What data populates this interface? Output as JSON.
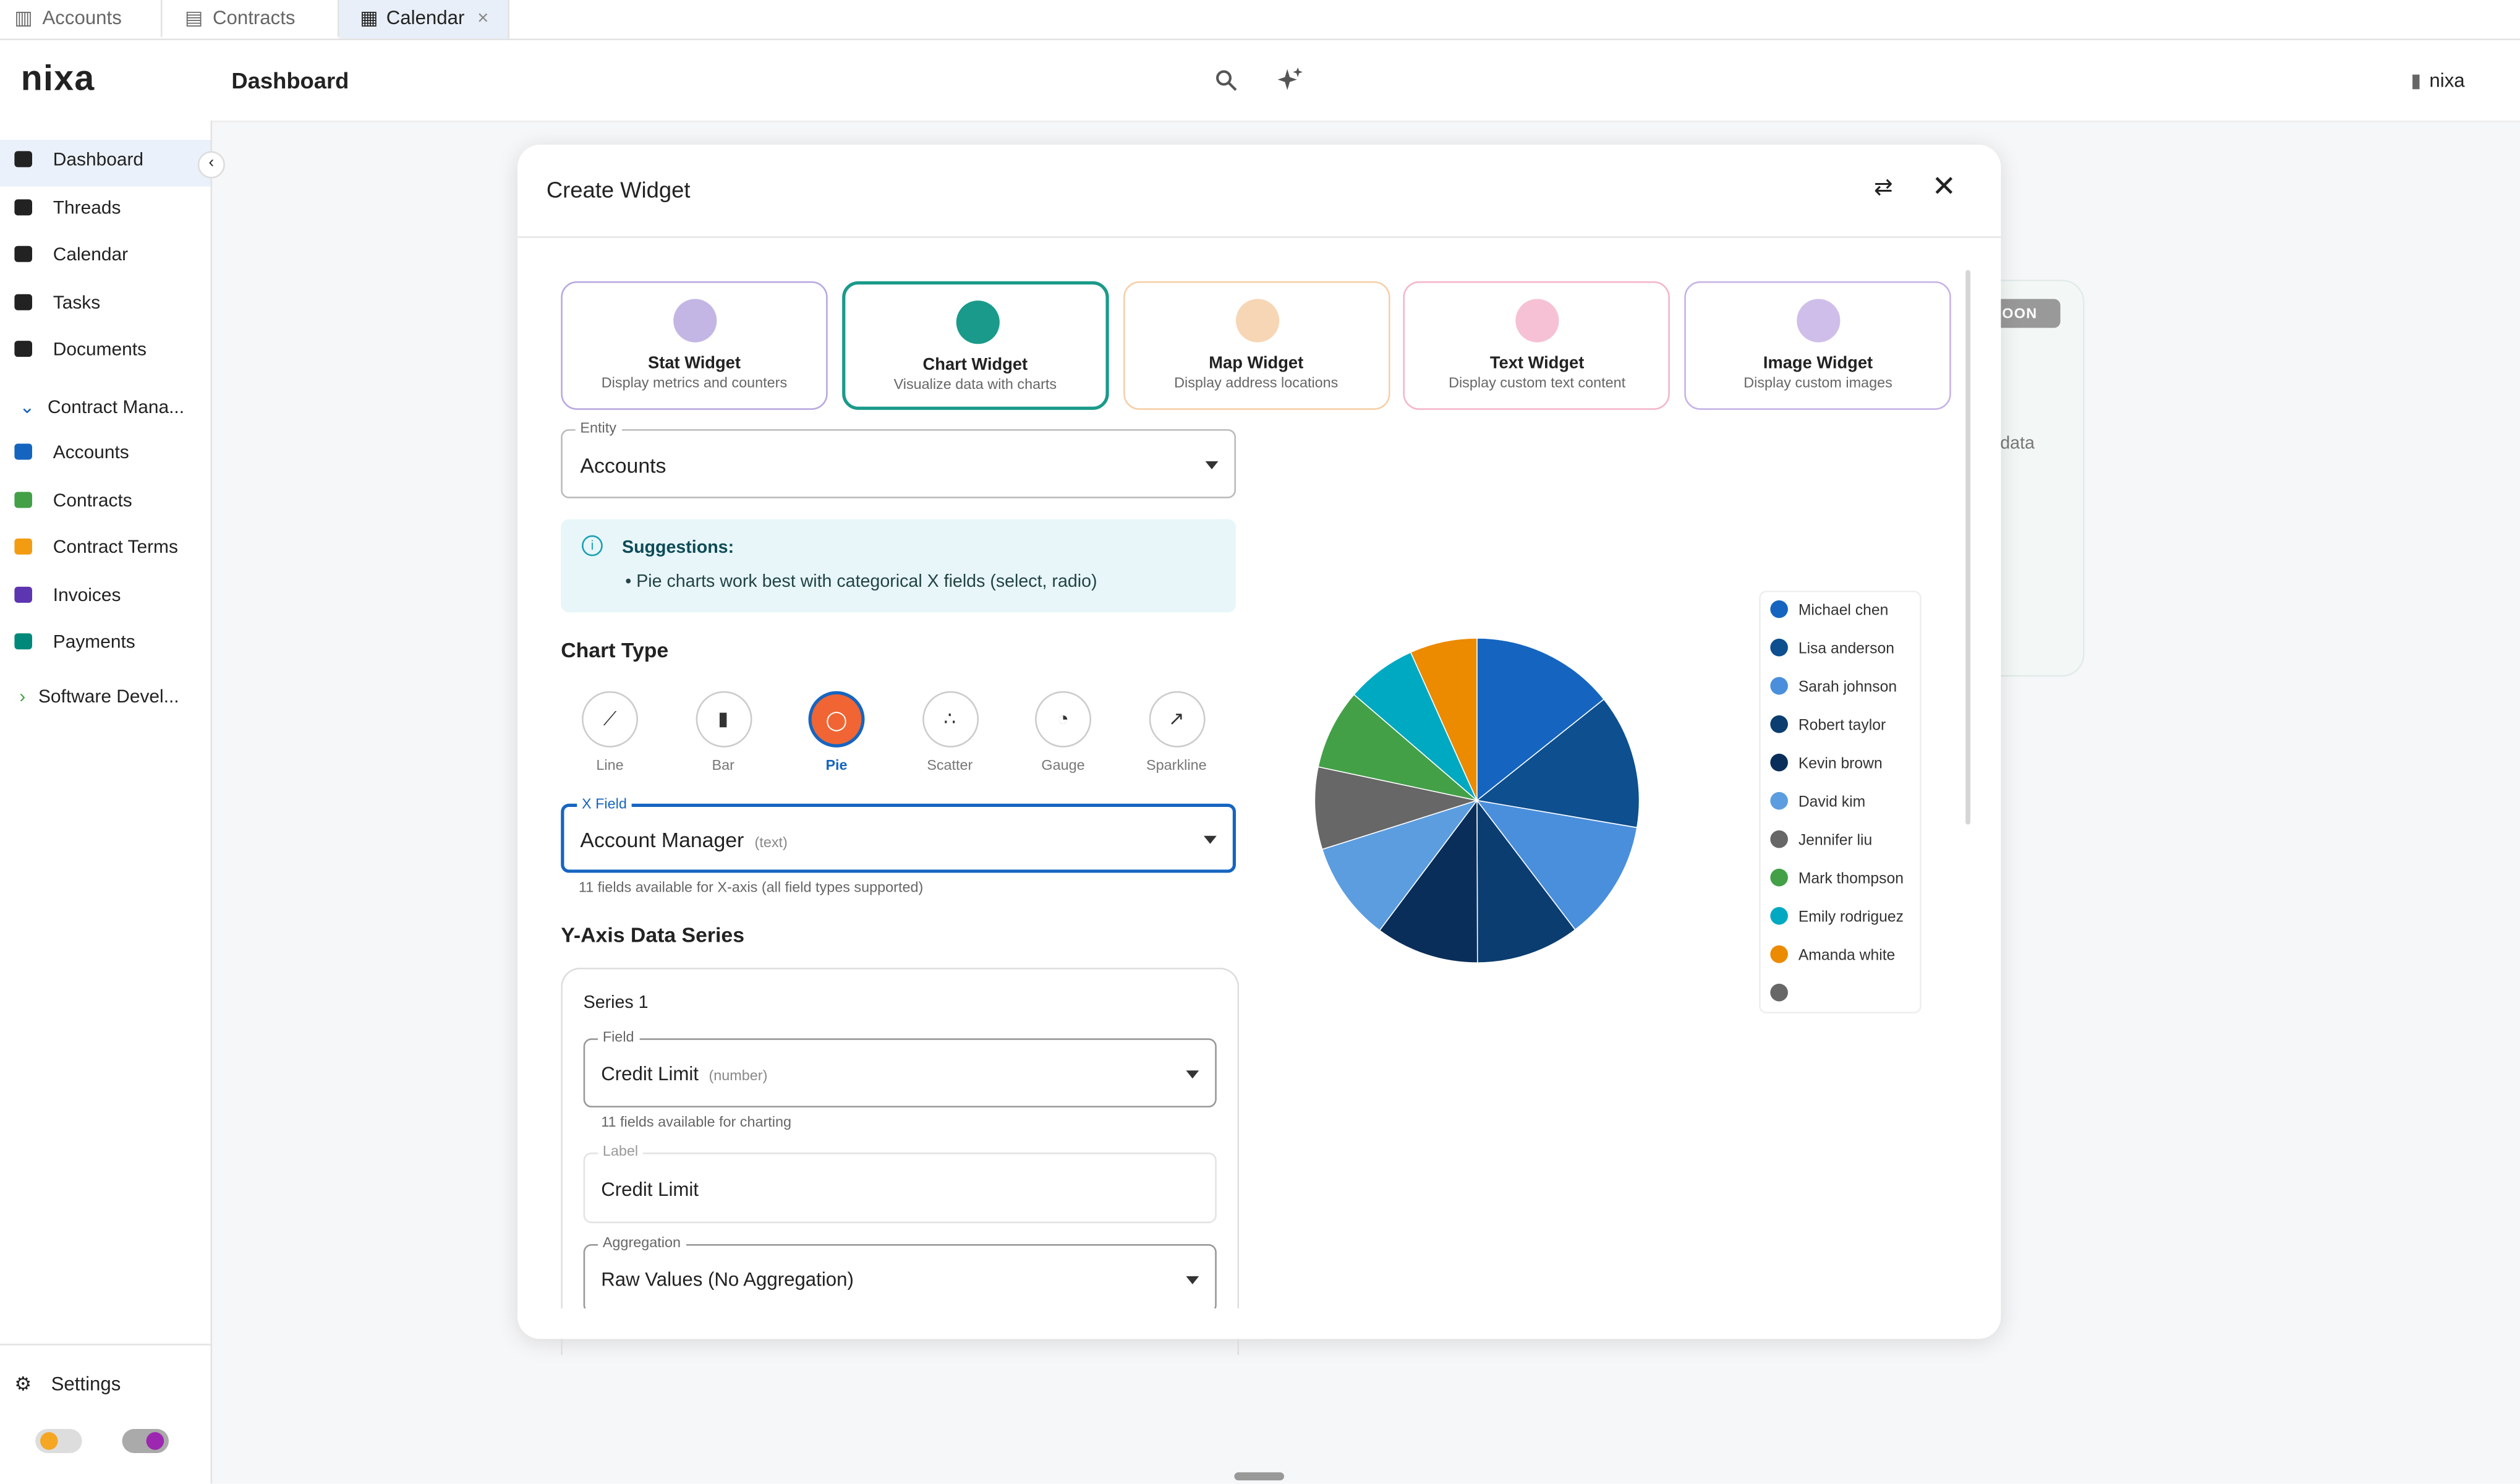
{
  "tabs": [
    "Accounts",
    "Contracts",
    "Calendar"
  ],
  "brand": "nixa",
  "header": {
    "title": "Dashboard",
    "workspace": "nixa"
  },
  "sidebar": {
    "items": [
      "Dashboard",
      "Threads",
      "Calendar",
      "Tasks",
      "Documents"
    ],
    "group": "Contract Mana...",
    "group_items": [
      "Accounts",
      "Contracts",
      "Contract Terms",
      "Invoices",
      "Payments"
    ],
    "group2": "Software Devel...",
    "settings": "Settings"
  },
  "background_card": {
    "badge": "SOON",
    "text": "data"
  },
  "modal": {
    "title": "Create Widget",
    "widget_types": [
      {
        "title": "Stat Widget",
        "description": "Display metrics and counters",
        "color": "#b9a9e0"
      },
      {
        "title": "Chart Widget",
        "description": "Visualize data with charts",
        "color": "#1a9a8a"
      },
      {
        "title": "Map Widget",
        "description": "Display address locations",
        "color": "#f6cfa8"
      },
      {
        "title": "Text Widget",
        "description": "Display custom text content",
        "color": "#f4b6cc"
      },
      {
        "title": "Image Widget",
        "description": "Display custom images",
        "color": "#c7b3e6"
      }
    ],
    "entity": {
      "label": "Entity",
      "value": "Accounts"
    },
    "suggestions": {
      "title": "Suggestions:",
      "items": [
        "Pie charts work best with categorical X fields (select, radio)"
      ]
    },
    "chart_type": {
      "heading": "Chart Type",
      "options": [
        "Line",
        "Bar",
        "Pie",
        "Scatter",
        "Gauge",
        "Sparkline"
      ],
      "selected": 2
    },
    "x_field": {
      "label": "X Field",
      "value": "Account Manager",
      "type": "(text)",
      "helper": "11 fields available for X-axis (all field types supported)"
    },
    "y_axis": {
      "heading": "Y-Axis Data Series",
      "series": [
        {
          "title": "Series 1",
          "field": {
            "label": "Field",
            "value": "Credit Limit",
            "type": "(number)",
            "helper": "11 fields available for charting"
          },
          "label": {
            "label": "Label",
            "value": "Credit Limit"
          },
          "aggregation": {
            "label": "Aggregation",
            "value": "Raw Values (No Aggregation)"
          }
        }
      ]
    }
  },
  "chart_data": {
    "type": "pie",
    "categories": [
      "Michael chen",
      "Lisa anderson",
      "Sarah johnson",
      "Robert taylor",
      "Kevin brown",
      "David kim",
      "Jennifer liu",
      "Mark thompson",
      "Emily rodriguez",
      "Amanda white",
      null
    ],
    "values": [
      14.3,
      13.4,
      12,
      10.3,
      10.3,
      9.9,
      8.2,
      8,
      7,
      6.7,
      0
    ],
    "colors": [
      "#1565c0",
      "#0d4f8f",
      "#4a8fdc",
      "#0b3d70",
      "#0a2e5a",
      "#5c9de0",
      "#676767",
      "#43a047",
      "#00a9c2",
      "#ec8a00",
      "#676767"
    ]
  }
}
